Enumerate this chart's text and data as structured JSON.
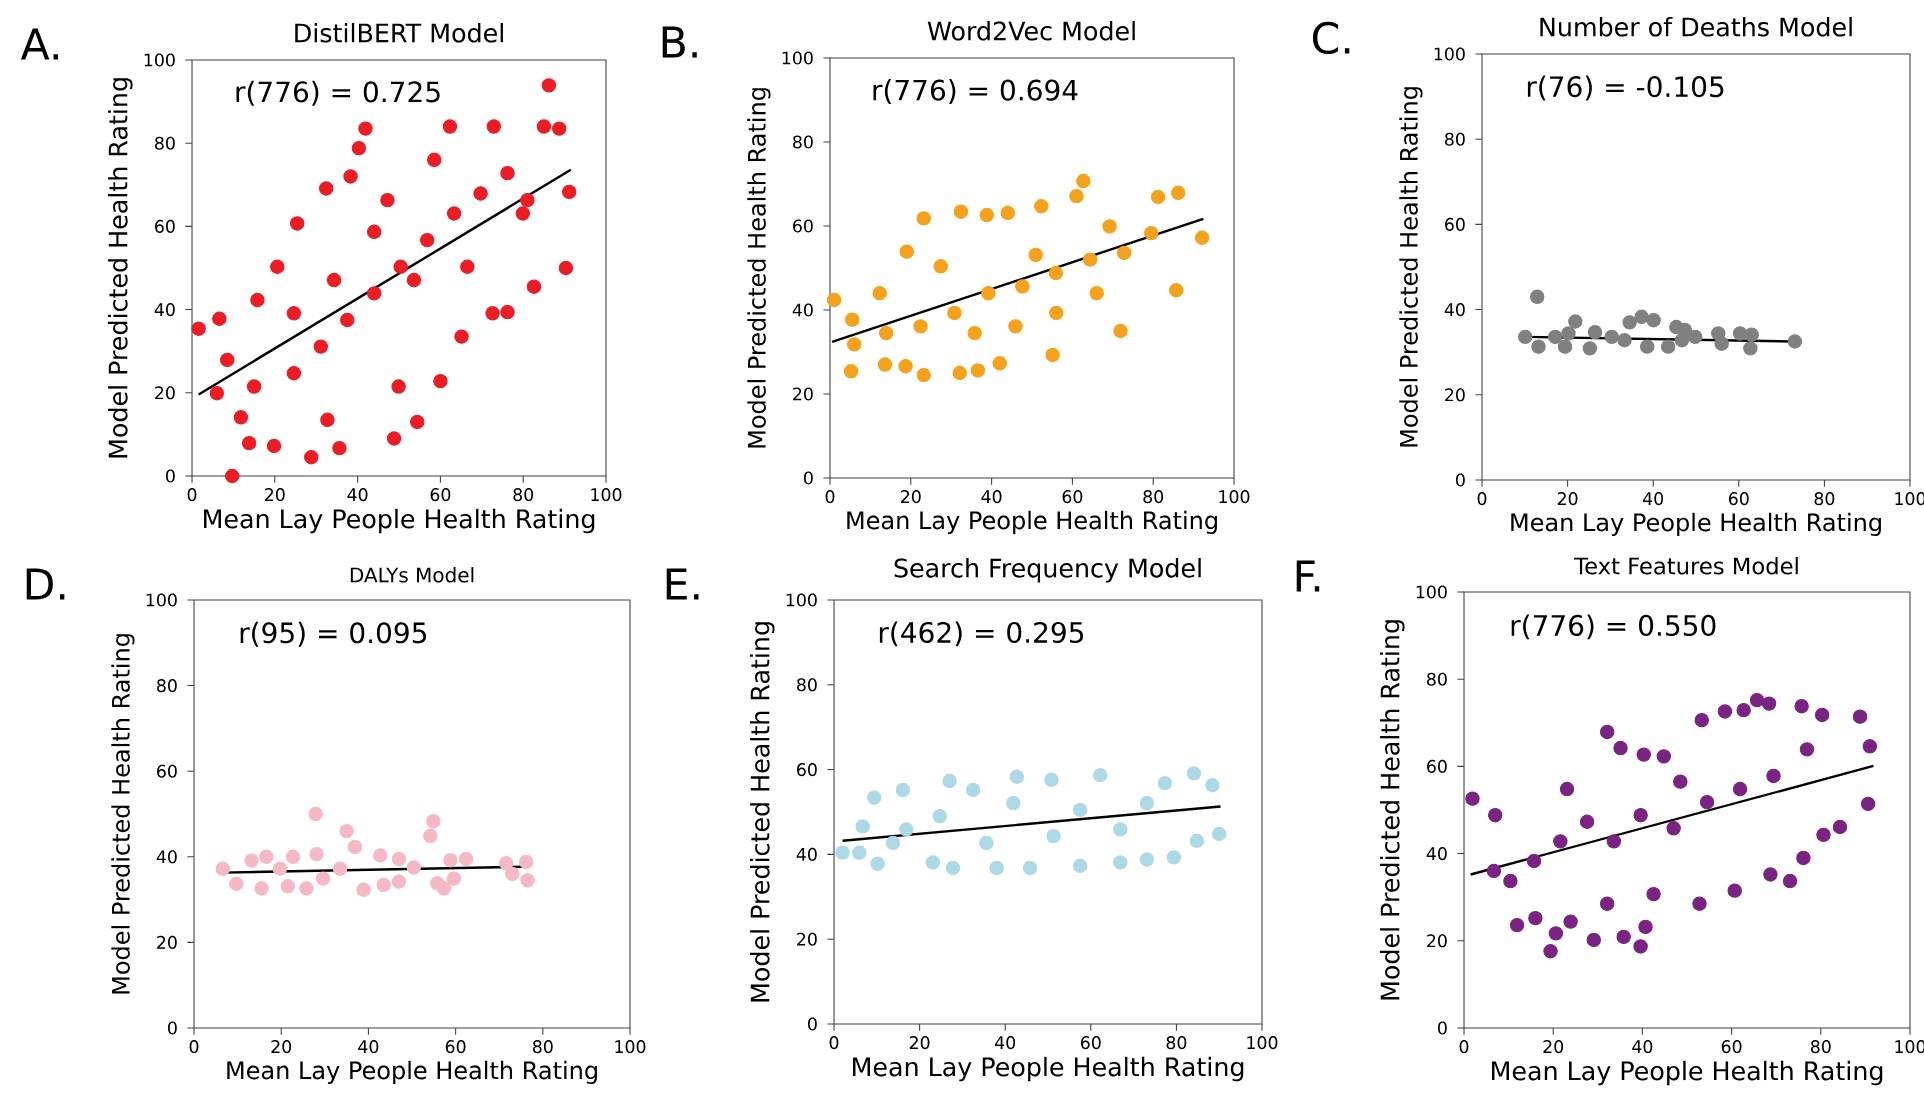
{
  "chart_data": [
    {
      "type": "scatter",
      "title": "DistilBERT Model",
      "xlabel": "Mean Lay People Health Rating",
      "ylabel": "Model Predicted Health Rating",
      "xlim": [
        0,
        100
      ],
      "ylim": [
        0,
        100
      ],
      "xticks": [
        0,
        20,
        40,
        60,
        80,
        100
      ],
      "yticks": [
        0,
        20,
        40,
        60,
        80,
        100
      ],
      "marker": "circle",
      "annotations": [
        "A.",
        "r(776) = 0.725"
      ],
      "series": [
        {
          "color": "#ed1c24",
          "x": [
            1.6,
            6.6,
            6,
            9.7,
            13.8,
            11.8,
            19.8,
            28.8,
            32.7,
            35.6,
            48.8,
            49.9,
            54.4,
            60,
            65.1,
            72.6,
            76.2,
            82.6,
            90.3,
            91.1,
            86.2,
            88.7,
            85,
            72.9,
            62.3,
            41.9,
            40.3,
            38.3,
            32.4,
            25.4,
            20.6,
            15.8,
            8.5,
            15,
            24.6,
            31.1,
            37.5,
            44,
            50.4,
            56.8,
            63.3,
            69.7,
            76.2,
            81,
            44,
            53.6,
            34.3,
            24.6,
            66.5,
            58.5,
            47.2,
            79.9
          ],
          "values": [
            35.4,
            37.8,
            19.9,
            0,
            7.9,
            14.1,
            7.2,
            4.5,
            13.5,
            6.7,
            9,
            21.5,
            13,
            22.8,
            33.5,
            39.1,
            39.4,
            45.5,
            50,
            68.3,
            93.9,
            83.5,
            84,
            84,
            84,
            83.5,
            78.8,
            72,
            69.1,
            60.7,
            50.3,
            42.3,
            27.9,
            21.5,
            24.7,
            31.1,
            37.5,
            43.9,
            50.3,
            56.7,
            63.1,
            67.9,
            72.8,
            66.3,
            58.7,
            47.1,
            47.1,
            39.1,
            50.3,
            76,
            66.3,
            63.1
          ]
        },
        {
          "type": "line",
          "marker": "none",
          "color": "#000000",
          "x": [
            1.6,
            91.5
          ],
          "values": [
            19.6,
            73.6
          ]
        }
      ]
    },
    {
      "type": "scatter",
      "title": "Word2Vec Model",
      "xlabel": "Mean Lay People Health Rating",
      "ylabel": "Model Predicted Health Rating",
      "xlim": [
        0,
        100
      ],
      "ylim": [
        0,
        100
      ],
      "xticks": [
        0,
        20,
        40,
        60,
        80,
        100
      ],
      "yticks": [
        0,
        20,
        40,
        60,
        80,
        100
      ],
      "marker": "circle",
      "annotations": [
        "B.",
        "r(776) = 0.694"
      ],
      "series": [
        {
          "color": "#f5a11c",
          "x": [
            1,
            5.2,
            6,
            13.6,
            18.7,
            23.2,
            32.1,
            36.6,
            42,
            55.1,
            71.9,
            85.7,
            92.1,
            86.2,
            81.2,
            62.7,
            61,
            52.3,
            44,
            38.8,
            32.4,
            23.2,
            19,
            12.3,
            5.5,
            13.9,
            22.4,
            30.8,
            39.2,
            47.6,
            55.9,
            64.4,
            72.8,
            79.5,
            69.2,
            56,
            45.9,
            35.8,
            66,
            27.4,
            50.9
          ],
          "values": [
            42.4,
            25.4,
            31.8,
            27,
            26.6,
            24.5,
            25,
            25.6,
            27.3,
            29.3,
            35,
            44.7,
            57.2,
            67.9,
            66.9,
            70.7,
            67.1,
            64.7,
            63.1,
            62.6,
            63.4,
            61.8,
            53.9,
            44,
            37.7,
            34.5,
            36.1,
            39.3,
            44,
            45.6,
            48.8,
            52,
            53.6,
            58.3,
            59.9,
            39.3,
            36.1,
            34.5,
            44,
            50.4,
            53.1
          ]
        },
        {
          "type": "line",
          "marker": "none",
          "color": "#000000",
          "x": [
            0.5,
            92.4
          ],
          "values": [
            32.4,
            61.7
          ]
        }
      ]
    },
    {
      "type": "scatter",
      "title": "Number of Deaths Model",
      "xlabel": "Mean Lay People Health Rating",
      "ylabel": "Model Predicted Health Rating",
      "xlim": [
        0,
        100
      ],
      "ylim": [
        0,
        100
      ],
      "xticks": [
        0,
        20,
        40,
        60,
        80,
        100
      ],
      "yticks": [
        0,
        20,
        40,
        60,
        80,
        100
      ],
      "marker": "circle",
      "annotations": [
        "C.",
        "r(76) = -0.105"
      ],
      "series": [
        {
          "color": "#808080",
          "x": [
            10.1,
            12.9,
            13.2,
            17.1,
            19.4,
            21.8,
            25.2,
            26.4,
            30.3,
            34.5,
            37.3,
            40.1,
            38.6,
            43.5,
            45.4,
            47.4,
            49.8,
            55.2,
            56,
            60.3,
            62.7,
            63,
            73.1,
            20.2,
            33.3,
            46.7
          ],
          "values": [
            33.6,
            43,
            31.3,
            33.6,
            31.3,
            37.2,
            30.9,
            34.7,
            33.6,
            37,
            38.3,
            37.5,
            31.3,
            31.3,
            35.9,
            35.2,
            33.6,
            34.4,
            32,
            34.4,
            30.9,
            34.1,
            32.5,
            34.4,
            32.8,
            32.8
          ]
        },
        {
          "type": "line",
          "marker": "none",
          "color": "#000000",
          "x": [
            10.1,
            73.1
          ],
          "values": [
            33.6,
            32.5
          ]
        }
      ]
    },
    {
      "type": "scatter",
      "title": "DALYs Model",
      "xlabel": "Mean Lay People Health Rating",
      "ylabel": "Model Predicted Health Rating",
      "xlim": [
        0,
        100
      ],
      "ylim": [
        0,
        100
      ],
      "xticks": [
        0,
        20,
        40,
        60,
        80,
        100
      ],
      "yticks": [
        0,
        20,
        40,
        60,
        80,
        100
      ],
      "marker": "circle",
      "annotations": [
        "D.",
        "r(95) = 0.095"
      ],
      "series": [
        {
          "color": "#f7b8c6",
          "x": [
            6.6,
            9.7,
            13.2,
            15.5,
            16.6,
            21.5,
            22.7,
            25.8,
            27.9,
            28.1,
            29.6,
            35,
            36.9,
            38.9,
            42.7,
            43.5,
            47,
            47,
            54.2,
            54.9,
            55.8,
            57.3,
            58.8,
            59.6,
            62.4,
            71.6,
            73,
            76.2,
            76.5,
            19.7,
            33.5,
            50.4
          ],
          "values": [
            37.2,
            33.7,
            39.1,
            32.6,
            40,
            33.1,
            40,
            32.6,
            50,
            40.6,
            34.9,
            46,
            42.3,
            32.3,
            40.3,
            33.4,
            34.2,
            39.5,
            44.9,
            48.3,
            33.8,
            32.6,
            39.2,
            34.9,
            39.5,
            38.5,
            36,
            38.8,
            34.5,
            37.2,
            37.2,
            37.5
          ]
        },
        {
          "type": "line",
          "marker": "none",
          "color": "#000000",
          "x": [
            6.3,
            76.8
          ],
          "values": [
            36.3,
            37.7
          ]
        }
      ]
    },
    {
      "type": "scatter",
      "title": "Search Frequency Model",
      "xlabel": "Mean Lay People Health Rating",
      "ylabel": "Model Predicted Health Rating",
      "xlim": [
        0,
        100
      ],
      "ylim": [
        0,
        100
      ],
      "xticks": [
        0,
        20,
        40,
        60,
        80,
        100
      ],
      "yticks": [
        0,
        20,
        40,
        60,
        80,
        100
      ],
      "marker": "circle",
      "annotations": [
        "E.",
        "r(462) = 0.295"
      ],
      "series": [
        {
          "color": "#add8e6",
          "x": [
            2,
            5.9,
            6.7,
            9.4,
            10.2,
            16.1,
            23.1,
            27,
            27.8,
            38,
            42.7,
            45.8,
            50.8,
            57.5,
            62.2,
            66.9,
            73.1,
            77.3,
            79.4,
            84.1,
            88.4,
            84.8,
            90,
            16.9,
            24.7,
            35.6,
            41.9,
            51.3,
            57.5,
            66.9,
            73.1,
            32.5,
            13.8
          ],
          "values": [
            40.4,
            40.4,
            46.6,
            53.4,
            37.8,
            55.2,
            38.1,
            57.3,
            36.8,
            36.8,
            58.3,
            36.8,
            57.6,
            37.3,
            58.7,
            38.1,
            38.8,
            56.8,
            39.3,
            59.1,
            56.3,
            43.2,
            44.8,
            45.9,
            49,
            42.7,
            52.1,
            44.3,
            50.5,
            45.9,
            52.1,
            55.2,
            42.7
          ]
        },
        {
          "type": "line",
          "marker": "none",
          "color": "#000000",
          "x": [
            2,
            90.3
          ],
          "values": [
            43.2,
            51.3
          ]
        }
      ]
    },
    {
      "type": "scatter",
      "title": "Text Features Model",
      "xlabel": "Mean Lay People Health Rating",
      "ylabel": "Model Predicted Health Rating",
      "xlim": [
        0,
        100
      ],
      "ylim": [
        0,
        100
      ],
      "xticks": [
        0,
        20,
        40,
        60,
        80,
        100
      ],
      "yticks": [
        0,
        20,
        40,
        60,
        80,
        100
      ],
      "marker": "circle",
      "annotations": [
        "F.",
        "r(776) = 0.550"
      ],
      "series": [
        {
          "color": "#7b2382",
          "x": [
            1.9,
            6.7,
            7,
            11.9,
            16,
            19.4,
            20.6,
            23.9,
            29.1,
            32.1,
            35.8,
            39.6,
            40.7,
            35.1,
            40.3,
            44.8,
            53.3,
            58.5,
            62.7,
            65.7,
            68.4,
            75.7,
            80.3,
            88.8,
            91,
            90.6,
            84.3,
            80.6,
            76.1,
            73.1,
            68.7,
            60.7,
            52.8,
            42.5,
            32.1,
            10.4,
            15.7,
            21.6,
            27.6,
            33.6,
            39.6,
            47,
            54.5,
            61.9,
            69.4,
            76.9,
            48.5,
            23.1
          ],
          "values": [
            52.6,
            36,
            48.8,
            23.6,
            25.2,
            17.6,
            21.7,
            24.4,
            20.2,
            67.9,
            20.9,
            18.7,
            23.2,
            64.2,
            62.7,
            62.3,
            70.6,
            72.6,
            72.9,
            75.2,
            74.4,
            73.8,
            71.8,
            71.4,
            64.6,
            51.4,
            46.1,
            44.3,
            39,
            33.7,
            35.2,
            31.5,
            28.5,
            30.7,
            28.5,
            33.7,
            38.3,
            42.8,
            47.3,
            42.8,
            48.8,
            45.8,
            51.8,
            54.8,
            57.8,
            63.9,
            56.5,
            54.8
          ]
        },
        {
          "type": "line",
          "marker": "none",
          "color": "#000000",
          "x": [
            1.5,
            91.8
          ],
          "values": [
            35.2,
            60.1
          ]
        }
      ]
    }
  ]
}
